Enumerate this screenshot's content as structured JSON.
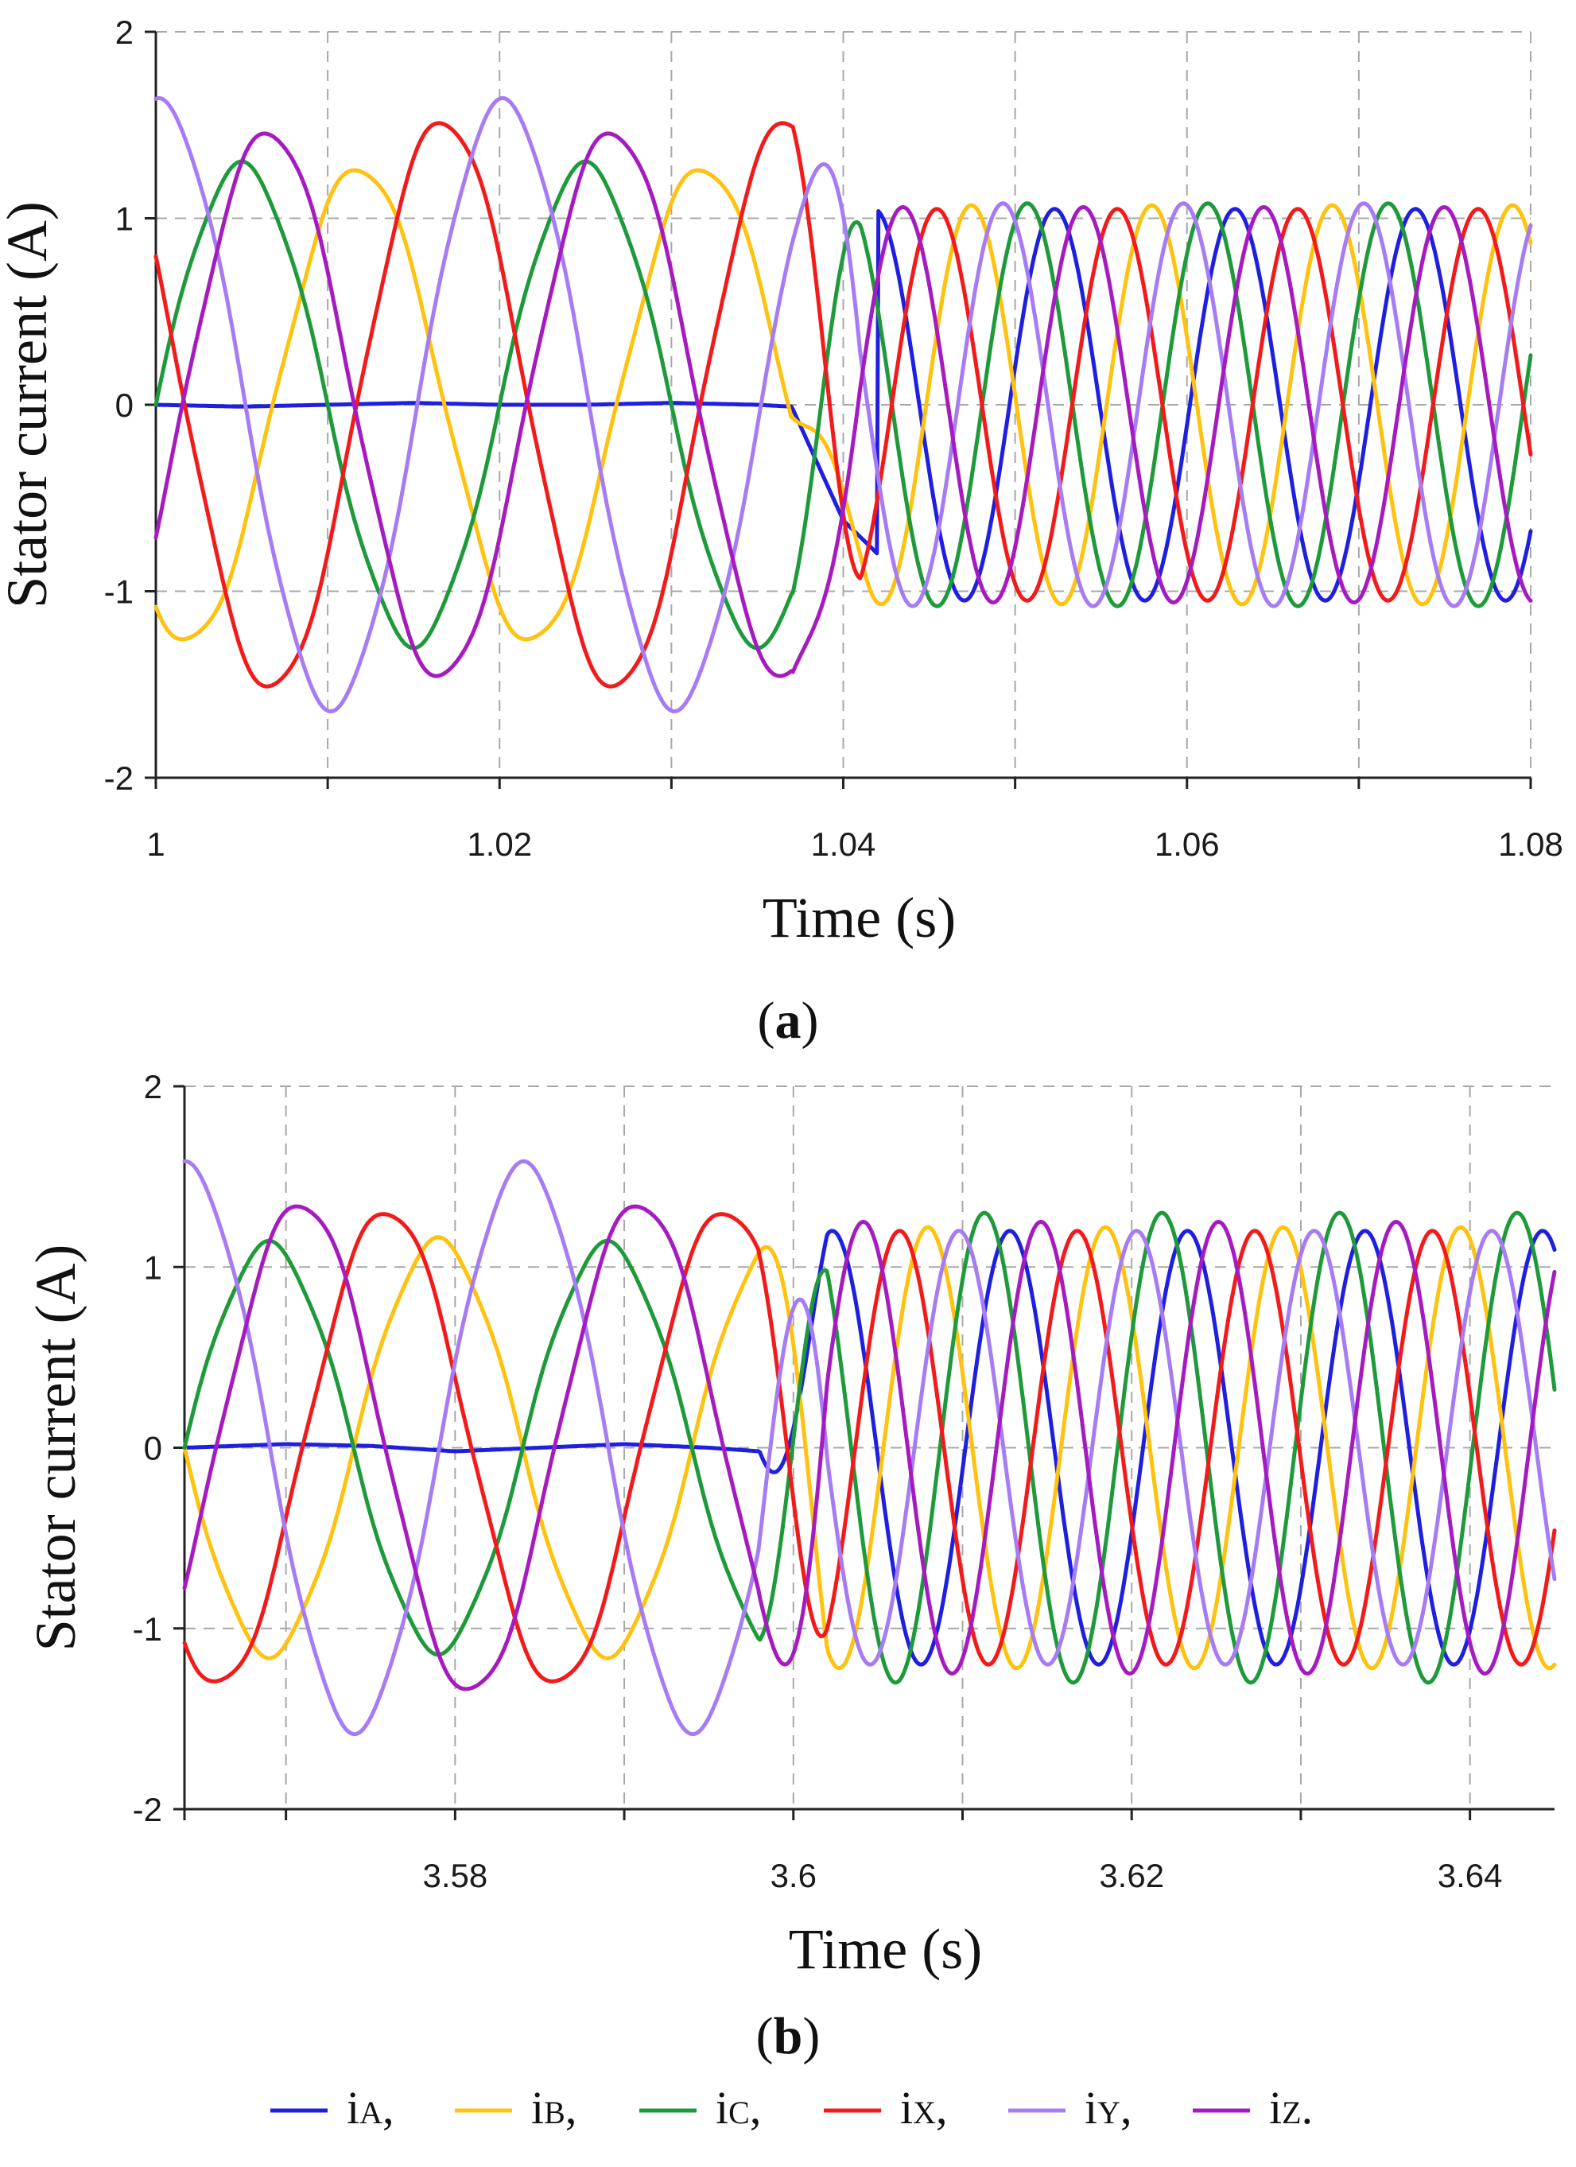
{
  "chart_data": [
    {
      "id": "a",
      "type": "line",
      "caption": "a",
      "xlabel": "Time (s)",
      "ylabel": "Stator current (A)",
      "xlim": [
        1.0,
        1.08
      ],
      "ylim": [
        -2,
        2
      ],
      "xticks": [
        1.0,
        1.02,
        1.04,
        1.06,
        1.08
      ],
      "xtick_labels": [
        "1",
        "1.02",
        "1.04",
        "1.06",
        "1.08"
      ],
      "yticks": [
        -2,
        -1,
        0,
        1,
        2
      ],
      "ytick_labels": [
        "-2",
        "-1",
        "0",
        "1",
        "2"
      ],
      "x_grid": [
        1.01,
        1.02,
        1.03,
        1.04,
        1.05,
        1.06,
        1.07,
        1.08
      ],
      "y_grid": [
        -1,
        0,
        1,
        2
      ],
      "fault_time": 1.037,
      "pre_period": 0.02,
      "post_period": 0.0105,
      "grid": true,
      "series": [
        {
          "name": "iA",
          "color": "#1f1fe0",
          "pre_amp": 0.0,
          "post_amp": 1.05,
          "post_phase": -1.3,
          "x": [
            1.0,
            1.005,
            1.01,
            1.015,
            1.02,
            1.025,
            1.03,
            1.035,
            1.037,
            1.04,
            1.042
          ],
          "y": [
            0.0,
            -0.01,
            0.0,
            0.01,
            0.0,
            0.0,
            0.01,
            0.0,
            -0.01,
            -0.62,
            -0.8
          ]
        },
        {
          "name": "iB",
          "color": "#ffc20e",
          "pre_amp": 1.27,
          "pre_phase": -2.15,
          "post_amp": 1.07,
          "post_phase": 1.6
        },
        {
          "name": "iC",
          "color": "#1e9a3b",
          "pre_amp": 1.28,
          "pre_phase": 0.0,
          "post_amp": 1.08,
          "post_phase": -0.35
        },
        {
          "name": "iX",
          "color": "#f21a1a",
          "pre_amp": 1.52,
          "pre_phase": 2.6,
          "post_amp": 1.05,
          "post_phase": 2.8
        },
        {
          "name": "iY",
          "color": "#a67cf5",
          "pre_amp": 1.62,
          "pre_phase": 1.5,
          "post_amp": 1.08,
          "post_phase": 0.5
        },
        {
          "name": "iZ",
          "color": "#a61bc0",
          "pre_amp": 1.46,
          "pre_phase": -0.5,
          "post_amp": 1.06,
          "post_phase": -2.3
        }
      ]
    },
    {
      "id": "b",
      "type": "line",
      "caption": "b",
      "xlabel": "Time (s)",
      "ylabel": "Stator current (A)",
      "xlim": [
        3.564,
        3.645
      ],
      "ylim": [
        -2,
        2
      ],
      "xticks": [
        3.58,
        3.6,
        3.62,
        3.64
      ],
      "xtick_labels": [
        "3.58",
        "3.6",
        "3.62",
        "3.64"
      ],
      "yticks": [
        -2,
        -1,
        0,
        1,
        2
      ],
      "ytick_labels": [
        "-2",
        "-1",
        "0",
        "1",
        "2"
      ],
      "x_grid": [
        3.57,
        3.58,
        3.59,
        3.6,
        3.61,
        3.62,
        3.63,
        3.64
      ],
      "y_grid": [
        -1,
        0,
        1,
        2
      ],
      "fault_time": 3.598,
      "pre_period": 0.02,
      "post_period": 0.0105,
      "grid": true,
      "series": [
        {
          "name": "iA",
          "color": "#1f1fe0",
          "pre_amp": 0.0,
          "post_amp": 1.2,
          "post_phase": -1.0,
          "x": [
            3.564,
            3.57,
            3.575,
            3.58,
            3.585,
            3.59,
            3.595,
            3.598
          ],
          "y": [
            0.0,
            0.02,
            0.01,
            -0.02,
            0.0,
            0.02,
            0.0,
            -0.02
          ]
        },
        {
          "name": "iB",
          "color": "#ffc20e",
          "pre_amp": 1.14,
          "pre_phase": 3.14,
          "post_amp": 1.22,
          "post_phase": 1.9
        },
        {
          "name": "iC",
          "color": "#1e9a3b",
          "pre_amp": 1.12,
          "pre_phase": 0.0,
          "post_amp": 1.3,
          "post_phase": -0.1
        },
        {
          "name": "iX",
          "color": "#f21a1a",
          "pre_amp": 1.31,
          "pre_phase": -2.2,
          "post_amp": 1.2,
          "post_phase": 2.9
        },
        {
          "name": "iY",
          "color": "#a67cf5",
          "pre_amp": 1.56,
          "pre_phase": 1.55,
          "post_amp": 1.2,
          "post_phase": 0.8
        },
        {
          "name": "iZ",
          "color": "#a61bc0",
          "pre_amp": 1.35,
          "pre_phase": -0.6,
          "post_amp": 1.25,
          "post_phase": -2.1
        }
      ]
    }
  ],
  "captions": [
    "a",
    "b"
  ],
  "legend": {
    "items": [
      {
        "label_main": "i",
        "label_sub": "A",
        "suffix": ",",
        "color": "#1f1fe0"
      },
      {
        "label_main": "i",
        "label_sub": "B",
        "suffix": ",",
        "color": "#ffc20e"
      },
      {
        "label_main": "i",
        "label_sub": "C",
        "suffix": ",",
        "color": "#1e9a3b"
      },
      {
        "label_main": "i",
        "label_sub": "X",
        "suffix": ",",
        "color": "#f21a1a"
      },
      {
        "label_main": "i",
        "label_sub": "Y",
        "suffix": ",",
        "color": "#a67cf5"
      },
      {
        "label_main": "i",
        "label_sub": "Z",
        "suffix": ".",
        "color": "#a61bc0"
      }
    ]
  }
}
